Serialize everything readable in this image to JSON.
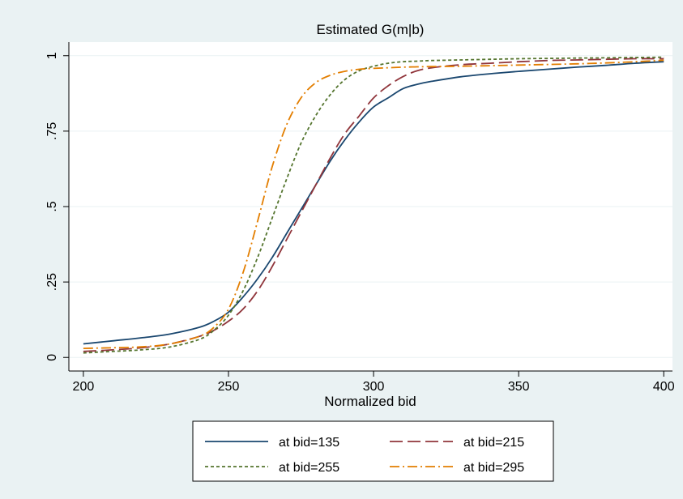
{
  "chart_data": {
    "type": "line",
    "title": "Estimated G(m|b)",
    "xlabel": "Normalized bid",
    "ylabel": "",
    "xlim": [
      195,
      403
    ],
    "ylim": [
      -0.045,
      1.045
    ],
    "x_ticks": [
      200,
      250,
      300,
      350,
      400
    ],
    "x_tick_labels": [
      "200",
      "250",
      "300",
      "350",
      "400"
    ],
    "y_ticks": [
      0,
      0.25,
      0.5,
      0.75,
      1
    ],
    "y_tick_labels": [
      "0",
      ".25",
      ".5",
      ".75",
      "1"
    ],
    "grid": true,
    "legend_position": "bottom",
    "x": [
      200,
      210,
      220,
      230,
      240,
      245,
      250,
      255,
      260,
      265,
      270,
      275,
      280,
      285,
      290,
      295,
      300,
      305,
      310,
      315,
      320,
      330,
      340,
      350,
      360,
      370,
      380,
      390,
      400
    ],
    "series": [
      {
        "name": "at bid=135",
        "color": "#1a476f",
        "dash": "solid",
        "values": [
          0.045,
          0.055,
          0.065,
          0.078,
          0.1,
          0.12,
          0.15,
          0.2,
          0.26,
          0.33,
          0.41,
          0.49,
          0.57,
          0.65,
          0.72,
          0.78,
          0.83,
          0.86,
          0.89,
          0.905,
          0.915,
          0.93,
          0.94,
          0.948,
          0.955,
          0.962,
          0.968,
          0.975,
          0.98
        ]
      },
      {
        "name": "at bid=215",
        "color": "#90353b",
        "dash": "long-dash",
        "values": [
          0.02,
          0.025,
          0.032,
          0.045,
          0.07,
          0.09,
          0.12,
          0.16,
          0.22,
          0.3,
          0.39,
          0.48,
          0.57,
          0.66,
          0.74,
          0.8,
          0.86,
          0.9,
          0.93,
          0.95,
          0.96,
          0.97,
          0.975,
          0.98,
          0.984,
          0.986,
          0.988,
          0.99,
          0.99
        ]
      },
      {
        "name": "at bid=255",
        "color": "#55752f",
        "dash": "short-dash",
        "values": [
          0.015,
          0.02,
          0.025,
          0.035,
          0.06,
          0.09,
          0.14,
          0.22,
          0.33,
          0.46,
          0.59,
          0.71,
          0.8,
          0.87,
          0.92,
          0.95,
          0.965,
          0.975,
          0.98,
          0.982,
          0.984,
          0.986,
          0.988,
          0.99,
          0.991,
          0.992,
          0.993,
          0.994,
          0.995
        ]
      },
      {
        "name": "at bid=295",
        "color": "#e37e00",
        "dash": "dash-dot",
        "values": [
          0.03,
          0.032,
          0.035,
          0.045,
          0.07,
          0.1,
          0.16,
          0.28,
          0.45,
          0.63,
          0.77,
          0.86,
          0.91,
          0.935,
          0.948,
          0.955,
          0.958,
          0.96,
          0.962,
          0.963,
          0.964,
          0.965,
          0.967,
          0.969,
          0.971,
          0.973,
          0.976,
          0.98,
          0.985
        ]
      }
    ]
  }
}
